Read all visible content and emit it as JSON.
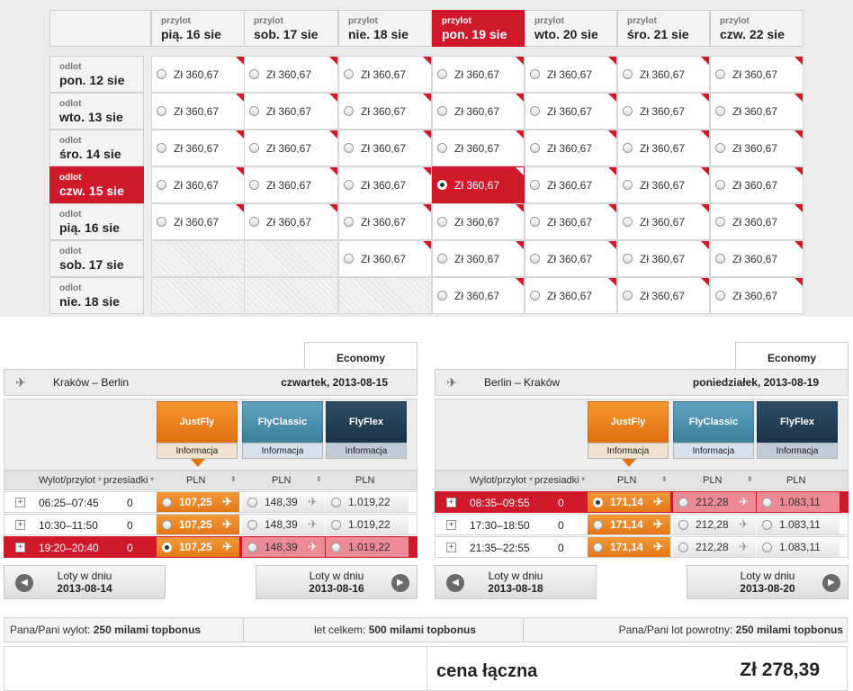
{
  "matrix": {
    "arrival_label": "przylot",
    "departure_label": "odlot",
    "columns": [
      "pią. 16 sie",
      "sob. 17 sie",
      "nie. 18 sie",
      "pon. 19 sie",
      "wto. 20 sie",
      "śro. 21 sie",
      "czw. 22 sie"
    ],
    "selected_column": 3,
    "rows": [
      "pon. 12 sie",
      "wto. 13 sie",
      "śro. 14 sie",
      "czw. 15 sie",
      "pią. 16 sie",
      "sob. 17 sie",
      "nie. 18 sie"
    ],
    "selected_row": 3,
    "price": "Zł 360,67",
    "unavailable": [
      [
        5,
        0
      ],
      [
        5,
        1
      ],
      [
        6,
        0
      ],
      [
        6,
        1
      ],
      [
        6,
        2
      ]
    ],
    "accent_color": "#d0182b"
  },
  "outbound": {
    "class_tab": "Economy",
    "route": "Kraków – Berlin",
    "date": "czwartek, 2013-08-15",
    "fares": [
      {
        "name": "JustFly",
        "info": "Informacja"
      },
      {
        "name": "FlyClassic",
        "info": "Informacja"
      },
      {
        "name": "FlyFlex",
        "info": "Informacja"
      }
    ],
    "col_time": "Wylot/przylot",
    "col_transfers": "przesiadki",
    "col_currency": "PLN",
    "flights": [
      {
        "time": "06:25–07:45",
        "transfers": "0",
        "p1": "107,25",
        "p2": "148,39",
        "p3": "1.019,22",
        "selected": false
      },
      {
        "time": "10:30–11:50",
        "transfers": "0",
        "p1": "107,25",
        "p2": "148,39",
        "p3": "1.019,22",
        "selected": false
      },
      {
        "time": "19:20–20:40",
        "transfers": "0",
        "p1": "107,25",
        "p2": "148,39",
        "p3": "1.019,22",
        "selected": true
      }
    ],
    "prev_label": "Loty w dniu",
    "prev_date": "2013-08-14",
    "next_label": "Loty w dniu",
    "next_date": "2013-08-16"
  },
  "return": {
    "class_tab": "Economy",
    "route": "Berlin – Kraków",
    "date": "poniedziałek, 2013-08-19",
    "fares": [
      {
        "name": "JustFly",
        "info": "Informacja"
      },
      {
        "name": "FlyClassic",
        "info": "Informacja"
      },
      {
        "name": "FlyFlex",
        "info": "Informacja"
      }
    ],
    "col_time": "Wylot/przylot",
    "col_transfers": "przesiadki",
    "col_currency": "PLN",
    "flights": [
      {
        "time": "08:35–09:55",
        "transfers": "0",
        "p1": "171,14",
        "p2": "212,28",
        "p3": "1.083,11",
        "selected": true
      },
      {
        "time": "17:30–18:50",
        "transfers": "0",
        "p1": "171,14",
        "p2": "212,28",
        "p3": "1.083,11",
        "selected": false
      },
      {
        "time": "21:35–22:55",
        "transfers": "0",
        "p1": "171,14",
        "p2": "212,28",
        "p3": "1.083,11",
        "selected": false
      }
    ],
    "prev_label": "Loty w dniu",
    "prev_date": "2013-08-18",
    "next_label": "Loty w dniu",
    "next_date": "2013-08-20"
  },
  "miles": {
    "outbound_prefix": "Pana/Pani wylot: ",
    "outbound_value": "250 milami topbonus",
    "total_prefix": "let celkem: ",
    "total_value": "500 milami topbonus",
    "return_prefix": "Pana/Pani lot powrotny: ",
    "return_value": "250 milami topbonus"
  },
  "total": {
    "label": "cena łączna",
    "amount": "Zł 278,39"
  }
}
